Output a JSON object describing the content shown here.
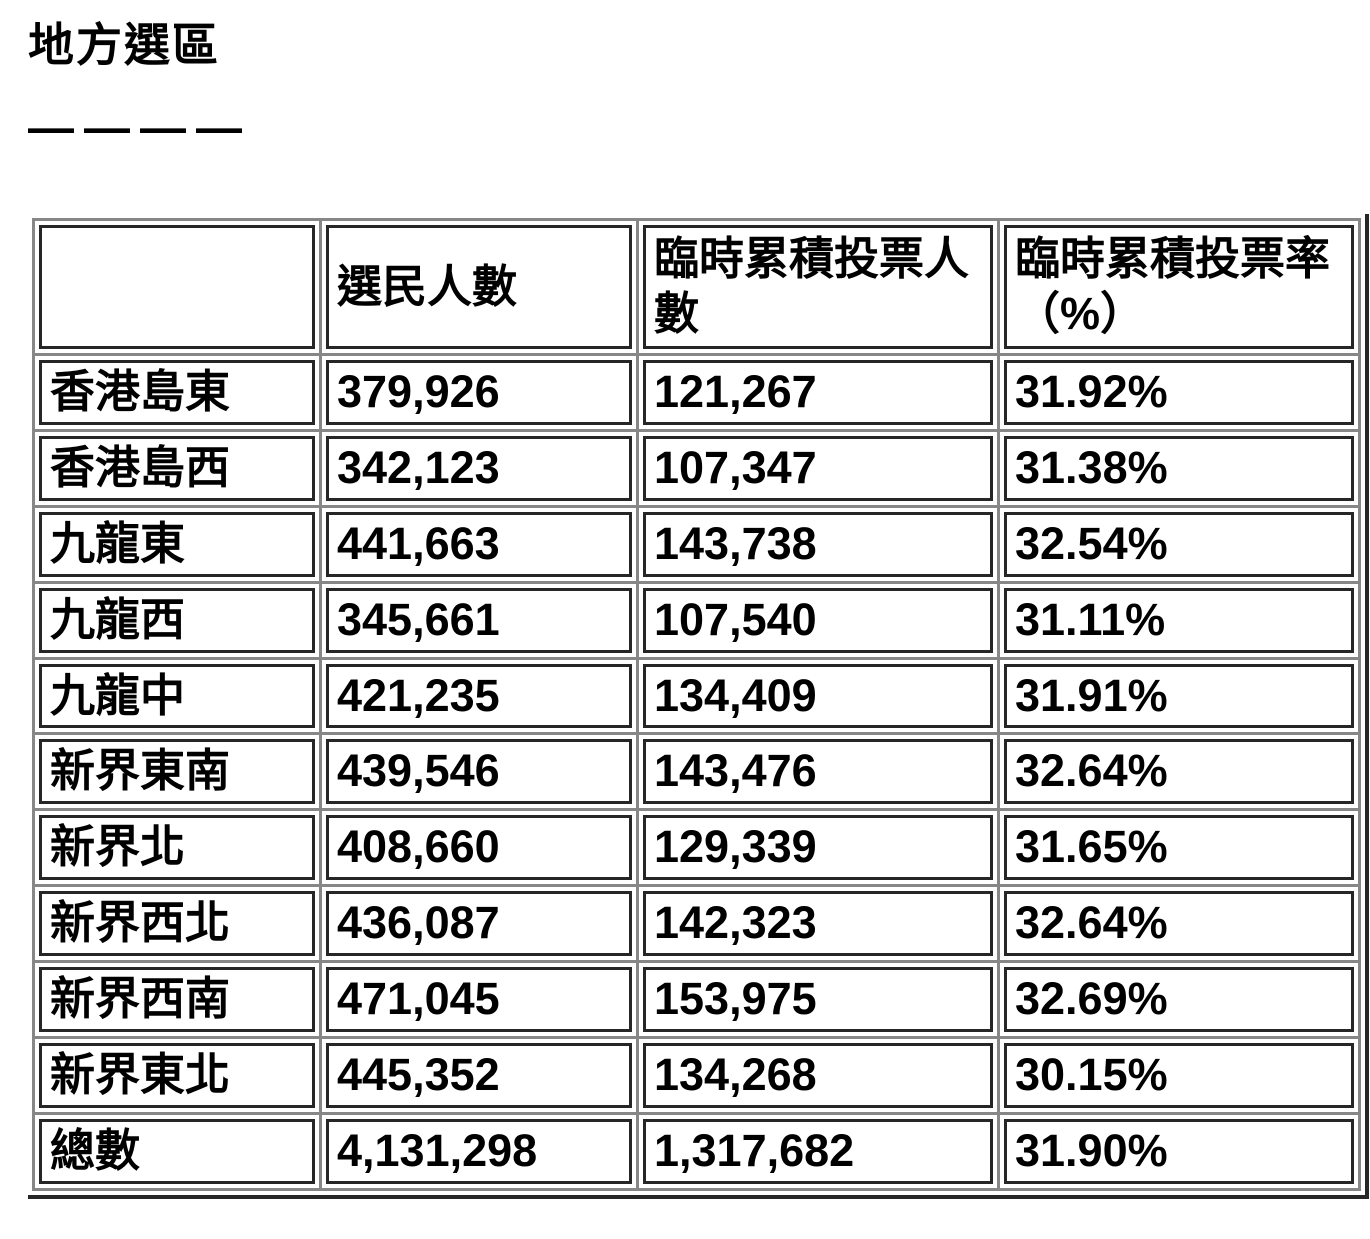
{
  "page": {
    "title": "地方選區",
    "divider": "————"
  },
  "table": {
    "columns": [
      "",
      "選民人數",
      "臨時累積投票人數",
      "臨時累積投票率（%）"
    ],
    "rows": [
      {
        "region": "香港島東",
        "electors": "379,926",
        "turnout": "121,267",
        "rate": "31.92%"
      },
      {
        "region": "香港島西",
        "electors": "342,123",
        "turnout": "107,347",
        "rate": "31.38%"
      },
      {
        "region": "九龍東",
        "electors": "441,663",
        "turnout": "143,738",
        "rate": "32.54%"
      },
      {
        "region": "九龍西",
        "electors": "345,661",
        "turnout": "107,540",
        "rate": "31.11%"
      },
      {
        "region": "九龍中",
        "electors": "421,235",
        "turnout": "134,409",
        "rate": "31.91%"
      },
      {
        "region": "新界東南",
        "electors": "439,546",
        "turnout": "143,476",
        "rate": "32.64%"
      },
      {
        "region": "新界北",
        "electors": "408,660",
        "turnout": "129,339",
        "rate": "31.65%"
      },
      {
        "region": "新界西北",
        "electors": "436,087",
        "turnout": "142,323",
        "rate": "32.64%"
      },
      {
        "region": "新界西南",
        "electors": "471,045",
        "turnout": "153,975",
        "rate": "32.69%"
      },
      {
        "region": "新界東北",
        "electors": "445,352",
        "turnout": "134,268",
        "rate": "30.15%"
      },
      {
        "region": "總數",
        "electors": "4,131,298",
        "turnout": "1,317,682",
        "rate": "31.90%"
      }
    ]
  }
}
